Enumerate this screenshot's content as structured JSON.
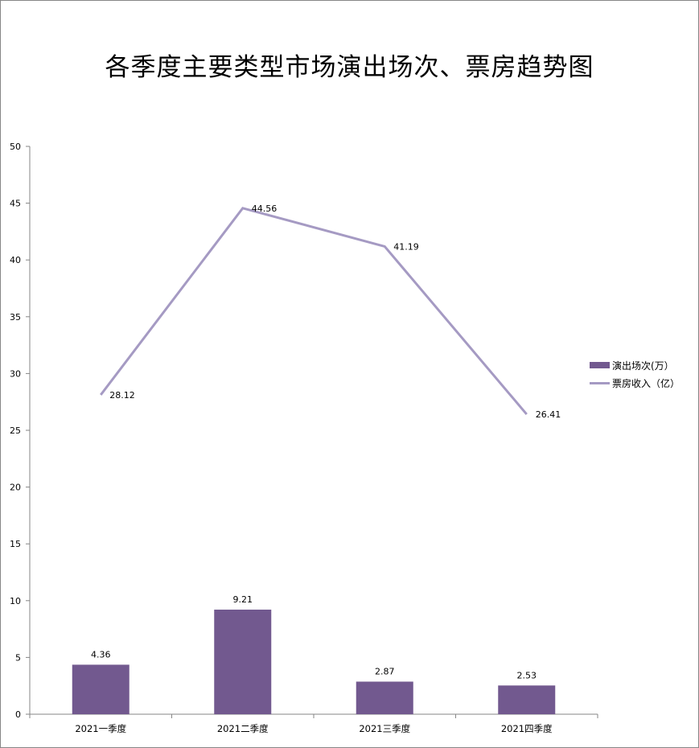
{
  "chart_data": {
    "type": "bar+line",
    "title": "各季度主要类型市场演出场次、票房趋势图",
    "categories": [
      "2021一季度",
      "2021二季度",
      "2021三季度",
      "2021四季度"
    ],
    "series": [
      {
        "name": "演出场次(万）",
        "type": "bar",
        "color": "#72598F",
        "values": [
          4.36,
          9.21,
          2.87,
          2.53
        ]
      },
      {
        "name": "票房收入（亿）",
        "type": "line",
        "color": "#A59AC3",
        "values": [
          28.12,
          44.56,
          41.19,
          26.41
        ]
      }
    ],
    "xlabel": "",
    "ylabel": "",
    "ylim": [
      0,
      50
    ],
    "yticks": [
      "0",
      "5",
      "10",
      "15",
      "20",
      "25",
      "30",
      "35",
      "40",
      "45",
      "50"
    ],
    "grid": false,
    "legend_position": "right",
    "data_labels": {
      "bar": [
        "4.36",
        "9.21",
        "2.87",
        "2.53"
      ],
      "line": [
        "28.12",
        "44.56",
        "41.19",
        "26.41"
      ]
    }
  },
  "legend": {
    "bar_label": "演出场次(万）",
    "line_label": "票房收入（亿）"
  }
}
